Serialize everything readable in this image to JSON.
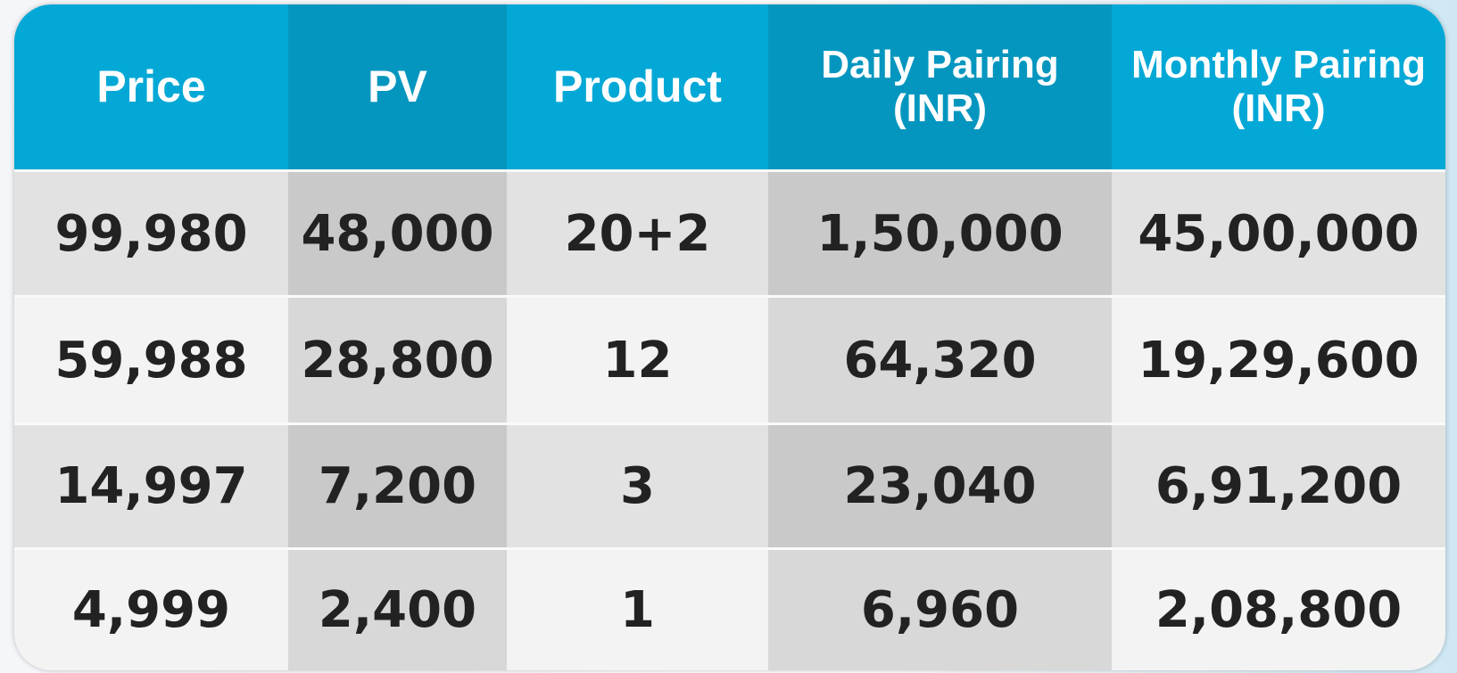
{
  "header": {
    "columns": [
      "Price",
      "PV",
      "Product",
      "Daily Pairing (INR)",
      "Monthly Pairing (INR)"
    ]
  },
  "table": {
    "rows": [
      [
        "99,980",
        "48,000",
        "20+2",
        "1,50,000",
        "45,00,000"
      ],
      [
        "59,988",
        "28,800",
        "12",
        "64,320",
        "19,29,600"
      ],
      [
        "14,997",
        "7,200",
        "3",
        "23,040",
        "6,91,200"
      ],
      [
        "4,999",
        "2,400",
        "1",
        "6,960",
        "2,08,800"
      ]
    ]
  }
}
